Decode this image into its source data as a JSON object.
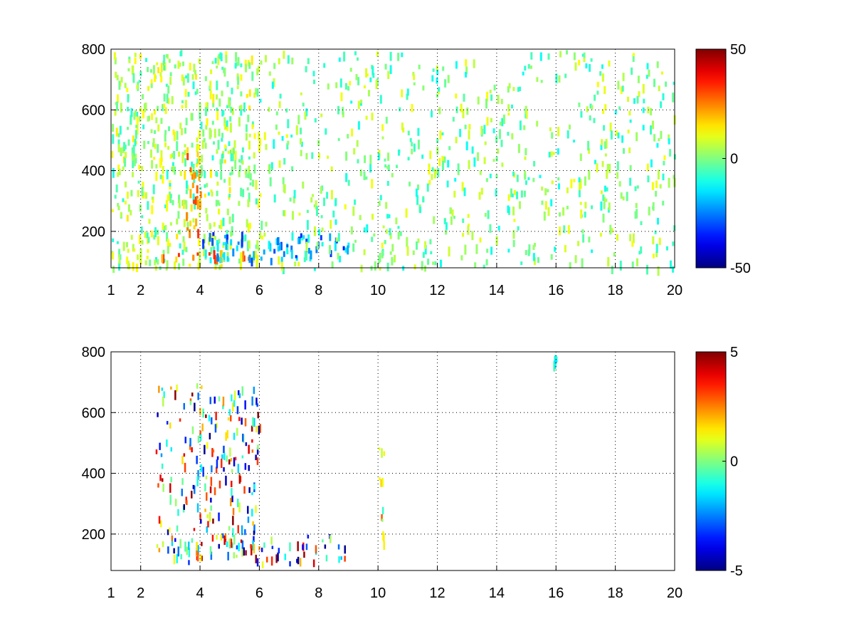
{
  "chart_data": [
    {
      "type": "heatmap",
      "title": "",
      "xlabel": "",
      "ylabel": "",
      "xlim": [
        1,
        20
      ],
      "ylim": [
        80,
        800
      ],
      "grid": true,
      "x_ticks": [
        1,
        2,
        4,
        6,
        8,
        10,
        12,
        14,
        16,
        18,
        20
      ],
      "y_ticks": [
        200,
        400,
        600,
        800
      ],
      "colorbar": {
        "min": -50,
        "max": 50,
        "ticks": [
          -50,
          0,
          50
        ],
        "colormap": "jet"
      },
      "features": [
        {
          "description": "dense low-amplitude scatter",
          "x_range": [
            1,
            6
          ],
          "y_range": [
            80,
            800
          ],
          "value_range": [
            -10,
            15
          ]
        },
        {
          "description": "high positive band",
          "x_range": [
            2.5,
            6
          ],
          "y_range": [
            110,
            140
          ],
          "value_range": [
            15,
            40
          ]
        },
        {
          "description": "strong positive ridge",
          "x_range": [
            3.5,
            4
          ],
          "y_range": [
            150,
            480
          ],
          "value_range": [
            15,
            35
          ]
        },
        {
          "description": "negative streak",
          "x_range": [
            4,
            9
          ],
          "y_range": [
            110,
            200
          ],
          "value_range": [
            -35,
            -10
          ]
        },
        {
          "description": "sparse vertical strips",
          "x_range": [
            6,
            20
          ],
          "y_range": [
            80,
            800
          ],
          "value_range": [
            -12,
            12
          ]
        }
      ]
    },
    {
      "type": "heatmap",
      "title": "",
      "xlabel": "",
      "ylabel": "",
      "xlim": [
        1,
        20
      ],
      "ylim": [
        80,
        800
      ],
      "grid": true,
      "x_ticks": [
        1,
        2,
        4,
        6,
        8,
        10,
        12,
        14,
        16,
        18,
        20
      ],
      "y_ticks": [
        200,
        400,
        600,
        800
      ],
      "colorbar": {
        "min": -5,
        "max": 5,
        "ticks": [
          -5,
          0,
          5
        ],
        "colormap": "jet"
      },
      "features": [
        {
          "description": "sparse scatter",
          "x_range": [
            2.5,
            6
          ],
          "y_range": [
            120,
            700
          ],
          "value_range": [
            -5,
            5
          ]
        },
        {
          "description": "dense horizontal band",
          "x_range": [
            2.5,
            9
          ],
          "y_range": [
            110,
            200
          ],
          "value_range": [
            -5,
            5
          ]
        },
        {
          "description": "isolated points",
          "x_range": [
            10,
            10.2
          ],
          "y_range": [
            150,
            500
          ],
          "value_range": [
            -1,
            3
          ]
        },
        {
          "description": "isolated points",
          "x_range": [
            15.9,
            16
          ],
          "y_range": [
            760,
            790
          ],
          "value_range": [
            -2,
            0
          ]
        }
      ]
    }
  ]
}
